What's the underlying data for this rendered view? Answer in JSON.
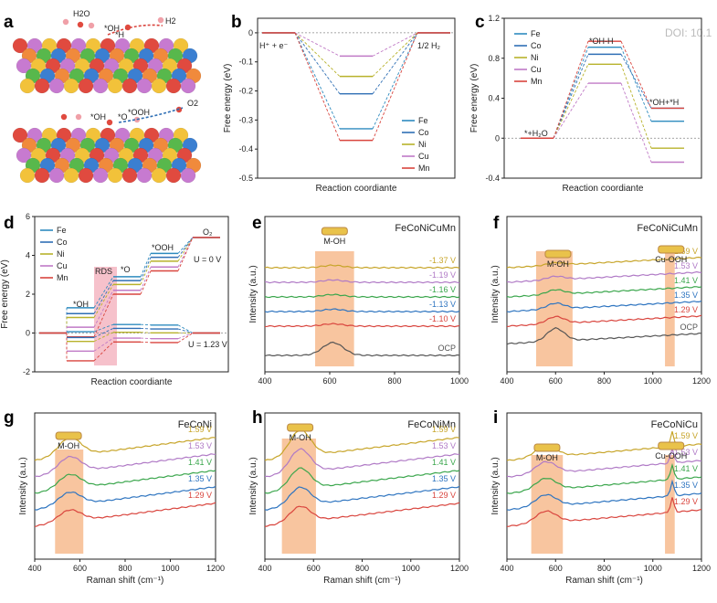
{
  "doi_text": "DOI: 10.1",
  "panels_text": {
    "a": {
      "label": "a",
      "top_labels": [
        "H2O",
        "*OH",
        "*H",
        "H2"
      ],
      "bottom_labels": [
        "*OH",
        "*O",
        "*OOH",
        "O2"
      ]
    },
    "b": {
      "label": "b"
    },
    "c": {
      "label": "c"
    },
    "d": {
      "label": "d"
    },
    "e": {
      "label": "e"
    },
    "f": {
      "label": "f"
    },
    "g": {
      "label": "g"
    },
    "h": {
      "label": "h"
    },
    "i": {
      "label": "i"
    }
  },
  "colors": {
    "Fe": "#2e8bbf",
    "Co": "#2f6fb5",
    "Ni": "#b8b22b",
    "Cu": "#c07ac6",
    "Mn": "#d9453e",
    "V159": "#c7a52a",
    "V153": "#b07ac6",
    "V141": "#3aa64c",
    "V135": "#2f75c0",
    "V129": "#d9453e",
    "OCP": "#555555",
    "highlight": "#f5b27f",
    "rds": "#f2a7b5"
  },
  "chart_data": [
    {
      "id": "b",
      "type": "line",
      "xlabel": "Reaction coordiante",
      "ylabel": "Free energy (eV)",
      "ylim": [
        -0.5,
        0.05
      ],
      "yticks": [
        0,
        -0.1,
        -0.2,
        -0.3,
        -0.4,
        -0.5
      ],
      "annotations": [
        "H⁺ + e⁻",
        "1/2 H₂"
      ],
      "legend": "bottom-right",
      "series": [
        {
          "name": "Fe",
          "color": "#2e8bbf",
          "values": [
            0,
            -0.33,
            0
          ]
        },
        {
          "name": "Co",
          "color": "#2f6fb5",
          "values": [
            0,
            -0.21,
            0
          ]
        },
        {
          "name": "Ni",
          "color": "#b8b22b",
          "values": [
            0,
            -0.15,
            0
          ]
        },
        {
          "name": "Cu",
          "color": "#c07ac6",
          "values": [
            0,
            -0.08,
            0
          ]
        },
        {
          "name": "Mn",
          "color": "#d9453e",
          "values": [
            0,
            -0.37,
            0
          ]
        }
      ]
    },
    {
      "id": "c",
      "type": "line",
      "xlabel": "Reaction coordiante",
      "ylabel": "Free energy (eV)",
      "ylim": [
        -0.4,
        1.2
      ],
      "yticks": [
        -0.4,
        0,
        0.4,
        0.8,
        1.2
      ],
      "annotations": [
        "*+H₂O",
        "*OH-H",
        "*OH+*H"
      ],
      "legend": "top-left",
      "series": [
        {
          "name": "Fe",
          "color": "#2e8bbf",
          "values": [
            0,
            0.91,
            0.17
          ]
        },
        {
          "name": "Co",
          "color": "#2f6fb5",
          "values": [
            0,
            0.84,
            0.3
          ]
        },
        {
          "name": "Ni",
          "color": "#b8b22b",
          "values": [
            0,
            0.74,
            -0.1
          ]
        },
        {
          "name": "Cu",
          "color": "#c07ac6",
          "values": [
            0,
            0.55,
            -0.24
          ]
        },
        {
          "name": "Mn",
          "color": "#d9453e",
          "values": [
            0,
            0.97,
            0.3
          ]
        }
      ]
    },
    {
      "id": "d",
      "type": "line",
      "xlabel": "Reaction coordiante",
      "ylabel": "Free energy (eV)",
      "ylim": [
        -2,
        6
      ],
      "yticks": [
        -2,
        0,
        2,
        4,
        6
      ],
      "annotations": [
        "*OH",
        "RDS",
        "*O",
        "*OOH",
        "O₂",
        "U = 0 V",
        "U = 1.23 V"
      ],
      "legend": "top-left",
      "series": [
        {
          "name": "Fe",
          "color": "#2e8bbf",
          "U0": [
            0,
            1.3,
            2.9,
            4.1,
            4.92
          ],
          "U123": [
            0,
            0.07,
            0.44,
            0.41,
            0.0
          ]
        },
        {
          "name": "Co",
          "color": "#2f6fb5",
          "U0": [
            0,
            1.0,
            2.7,
            3.9,
            4.92
          ],
          "U123": [
            0,
            -0.23,
            0.24,
            0.21,
            0.0
          ]
        },
        {
          "name": "Ni",
          "color": "#b8b22b",
          "U0": [
            0,
            0.8,
            2.5,
            3.7,
            4.92
          ],
          "U123": [
            0,
            -0.43,
            0.04,
            0.01,
            0.0
          ]
        },
        {
          "name": "Cu",
          "color": "#c07ac6",
          "U0": [
            0,
            0.3,
            2.2,
            3.4,
            4.92
          ],
          "U123": [
            0,
            -0.93,
            -0.26,
            -0.29,
            0.0
          ]
        },
        {
          "name": "Mn",
          "color": "#d9453e",
          "U0": [
            0,
            -0.2,
            2.0,
            3.2,
            4.92
          ],
          "U123": [
            0,
            -1.43,
            -0.46,
            -0.49,
            0.0
          ]
        }
      ]
    },
    {
      "id": "e",
      "type": "line",
      "title": "FeCoNiCuMn",
      "xlabel": "",
      "ylabel": "Intensity (a.u.)",
      "xlim": [
        400,
        1000
      ],
      "xticks": [
        400,
        600,
        800,
        1000
      ],
      "peak_label": "M-OH",
      "traces": [
        {
          "name": "-1.37 V",
          "color": "#c7a52a",
          "offset": 6,
          "peak": 0.1
        },
        {
          "name": "-1.19 V",
          "color": "#b07ac6",
          "offset": 5,
          "peak": 0.1
        },
        {
          "name": "-1.16 V",
          "color": "#3aa64c",
          "offset": 4,
          "peak": 0.1
        },
        {
          "name": "-1.13 V",
          "color": "#2f75c0",
          "offset": 3,
          "peak": 0.1
        },
        {
          "name": "-1.10 V",
          "color": "#d9453e",
          "offset": 2,
          "peak": 0.1
        },
        {
          "name": "OCP",
          "color": "#555555",
          "offset": 0,
          "peak": 0.55
        }
      ]
    },
    {
      "id": "f",
      "type": "line",
      "title": "FeCoNiCuMn",
      "xlabel": "",
      "ylabel": "Intensity (a.u.)",
      "xlim": [
        400,
        1200
      ],
      "xticks": [
        400,
        600,
        800,
        1000,
        1200
      ],
      "peak_labels": [
        "M-OH",
        "Cu-OOH"
      ],
      "traces": [
        {
          "name": "1.59 V",
          "color": "#c7a52a",
          "offset": 6,
          "peak": 0.1
        },
        {
          "name": "1.53 V",
          "color": "#b07ac6",
          "offset": 5,
          "peak": 0.15
        },
        {
          "name": "1.41 V",
          "color": "#3aa64c",
          "offset": 4,
          "peak": 0.2
        },
        {
          "name": "1.35 V",
          "color": "#2f75c0",
          "offset": 3,
          "peak": 0.25
        },
        {
          "name": "1.29 V",
          "color": "#d9453e",
          "offset": 2,
          "peak": 0.3
        },
        {
          "name": "OCP",
          "color": "#555555",
          "offset": 0.8,
          "peak": 0.55
        }
      ]
    },
    {
      "id": "g",
      "type": "line",
      "title": "FeCoNi",
      "xlabel": "Raman shift (cm⁻¹)",
      "ylabel": "Intensity (a.u.)",
      "xlim": [
        400,
        1200
      ],
      "xticks": [
        400,
        600,
        800,
        1000,
        1200
      ],
      "peak_label": "M-OH",
      "traces": [
        {
          "name": "1.59 V",
          "color": "#c7a52a",
          "offset": 5,
          "peak": 0.7
        },
        {
          "name": "1.53 V",
          "color": "#b07ac6",
          "offset": 4,
          "peak": 0.6
        },
        {
          "name": "1.41 V",
          "color": "#3aa64c",
          "offset": 3,
          "peak": 0.55
        },
        {
          "name": "1.35 V",
          "color": "#2f75c0",
          "offset": 2,
          "peak": 0.5
        },
        {
          "name": "1.29 V",
          "color": "#d9453e",
          "offset": 1,
          "peak": 0.45
        }
      ]
    },
    {
      "id": "h",
      "type": "line",
      "title": "FeCoNiMn",
      "xlabel": "Raman shift (cm⁻¹)",
      "ylabel": "Intensity (a.u.)",
      "xlim": [
        400,
        1200
      ],
      "xticks": [
        400,
        600,
        800,
        1000,
        1200
      ],
      "peak_label": "M-OH",
      "traces": [
        {
          "name": "1.59 V",
          "color": "#c7a52a",
          "offset": 5,
          "peak": 1.0
        },
        {
          "name": "1.53 V",
          "color": "#b07ac6",
          "offset": 4,
          "peak": 0.9
        },
        {
          "name": "1.41 V",
          "color": "#3aa64c",
          "offset": 3,
          "peak": 0.8
        },
        {
          "name": "1.35 V",
          "color": "#2f75c0",
          "offset": 2,
          "peak": 0.7
        },
        {
          "name": "1.29 V",
          "color": "#d9453e",
          "offset": 1,
          "peak": 0.6
        }
      ]
    },
    {
      "id": "i",
      "type": "line",
      "title": "FeCoNiCu",
      "xlabel": "Raman shift (cm⁻¹)",
      "ylabel": "Intensity (a.u.)",
      "xlim": [
        400,
        1200
      ],
      "xticks": [
        400,
        600,
        800,
        1000,
        1200
      ],
      "peak_labels": [
        "M-OH",
        "Cu-OOH"
      ],
      "traces": [
        {
          "name": "1.59 V",
          "color": "#c7a52a",
          "offset": 5,
          "peak": 0.45
        },
        {
          "name": "1.53 V",
          "color": "#b07ac6",
          "offset": 4,
          "peak": 0.45
        },
        {
          "name": "1.41 V",
          "color": "#3aa64c",
          "offset": 3,
          "peak": 0.45
        },
        {
          "name": "1.35 V",
          "color": "#2f75c0",
          "offset": 2,
          "peak": 0.45
        },
        {
          "name": "1.29 V",
          "color": "#d9453e",
          "offset": 1,
          "peak": 0.45
        }
      ]
    }
  ]
}
